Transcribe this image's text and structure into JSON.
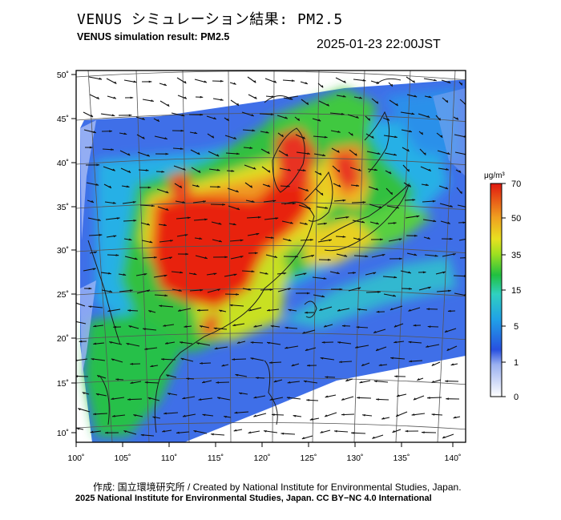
{
  "header": {
    "title_jp": "VENUS シミュレーション結果: PM2.5",
    "title_en": "VENUS simulation result: PM2.5",
    "timestamp": "2025-01-23 22:00JST"
  },
  "map": {
    "lat_labels": [
      "50˚",
      "45˚",
      "40˚",
      "35˚",
      "30˚",
      "25˚",
      "20˚",
      "15˚",
      "10˚"
    ],
    "lon_labels": [
      "100˚",
      "105˚",
      "110˚",
      "115˚",
      "120˚",
      "125˚",
      "130˚",
      "135˚",
      "140˚"
    ]
  },
  "legend": {
    "unit": "μg/m³",
    "ticks": [
      "70",
      "50",
      "35",
      "15",
      "5",
      "1",
      "0"
    ],
    "colors": [
      "#e8e8ff",
      "#2850e0",
      "#20b0e0",
      "#20c040",
      "#c8e020",
      "#f0a020",
      "#e02010"
    ]
  },
  "footer": {
    "credit": "作成: 国立環境研究所 / Created by National Institute for Environmental Studies, Japan.",
    "copyright": "2025 National Institute for Environmental Studies, Japan. CC BY−NC 4.0 International"
  }
}
